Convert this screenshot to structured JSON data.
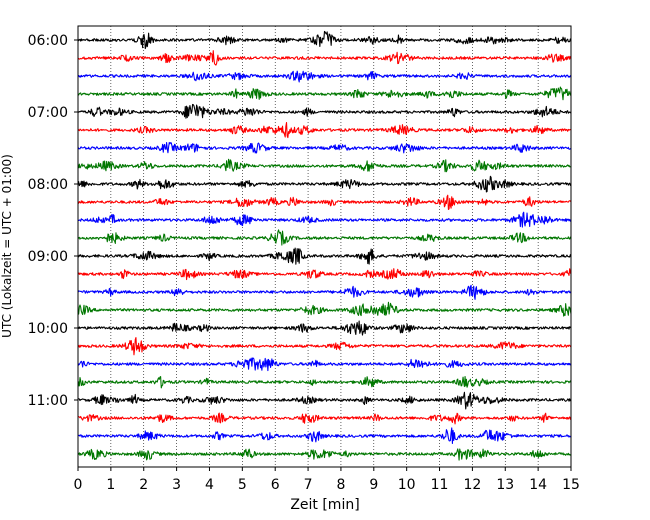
{
  "chart_data": {
    "type": "line",
    "title": "",
    "xlabel": "Zeit  [min]",
    "ylabel": "UTC (Lokalzeit = UTC + 01:00)",
    "xlim": [
      0,
      15
    ],
    "x_ticks": [
      "0",
      "1",
      "2",
      "3",
      "4",
      "5",
      "6",
      "7",
      "8",
      "9",
      "10",
      "11",
      "12",
      "13",
      "14",
      "15"
    ],
    "grid": "vertical dotted lines at each minute",
    "trace_interval_min": 15,
    "trace_colors_cycle": [
      "#000000",
      "#ff0000",
      "#0000ff",
      "#007700"
    ],
    "hour_labels": [
      {
        "label": "06:00",
        "trace_index": 0
      },
      {
        "label": "07:00",
        "trace_index": 4
      },
      {
        "label": "08:00",
        "trace_index": 8
      },
      {
        "label": "09:00",
        "trace_index": 12
      },
      {
        "label": "10:00",
        "trace_index": 16
      },
      {
        "label": "11:00",
        "trace_index": 20
      }
    ],
    "series": [
      {
        "start": "06:00",
        "color": "#000000"
      },
      {
        "start": "06:15",
        "color": "#ff0000"
      },
      {
        "start": "06:30",
        "color": "#0000ff"
      },
      {
        "start": "06:45",
        "color": "#007700"
      },
      {
        "start": "07:00",
        "color": "#000000"
      },
      {
        "start": "07:15",
        "color": "#ff0000"
      },
      {
        "start": "07:30",
        "color": "#0000ff"
      },
      {
        "start": "07:45",
        "color": "#007700"
      },
      {
        "start": "08:00",
        "color": "#000000"
      },
      {
        "start": "08:15",
        "color": "#ff0000"
      },
      {
        "start": "08:30",
        "color": "#0000ff"
      },
      {
        "start": "08:45",
        "color": "#007700"
      },
      {
        "start": "09:00",
        "color": "#000000"
      },
      {
        "start": "09:15",
        "color": "#ff0000"
      },
      {
        "start": "09:30",
        "color": "#0000ff"
      },
      {
        "start": "09:45",
        "color": "#007700"
      },
      {
        "start": "10:00",
        "color": "#000000"
      },
      {
        "start": "10:15",
        "color": "#ff0000"
      },
      {
        "start": "10:30",
        "color": "#0000ff"
      },
      {
        "start": "10:45",
        "color": "#007700"
      },
      {
        "start": "11:00",
        "color": "#000000"
      },
      {
        "start": "11:15",
        "color": "#ff0000"
      },
      {
        "start": "11:30",
        "color": "#0000ff"
      },
      {
        "start": "11:45",
        "color": "#007700"
      }
    ]
  }
}
